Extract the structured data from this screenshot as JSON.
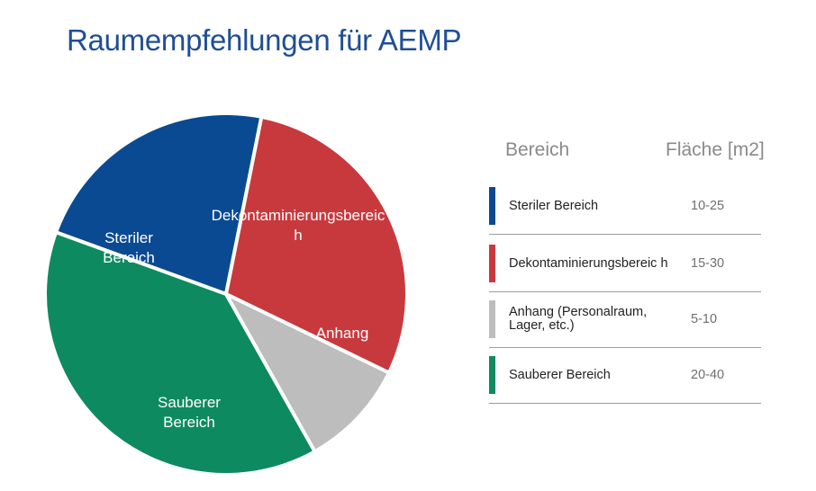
{
  "title": "Raumempfehlungen für AEMP",
  "table": {
    "header_area": "Bereich",
    "header_size": "Fläche [m2]",
    "rows": [
      {
        "name": "Steriler Bereich",
        "value": "10-25",
        "color": "#0a4a92"
      },
      {
        "name": "Dekontaminierungsbereic h",
        "value": "15-30",
        "color": "#c8393d"
      },
      {
        "name": "Anhang (Personalraum, Lager, etc.)",
        "value": "5-10",
        "color": "#bdbdbd"
      },
      {
        "name": "Sauberer Bereich",
        "value": "20-40",
        "color": "#0e8a60"
      }
    ]
  },
  "chart_data": {
    "type": "pie",
    "title": "",
    "slices": [
      {
        "label": "Steriler Bereich",
        "value": 17.5,
        "color": "#0a4a92"
      },
      {
        "label": "Dekontaminierungsbereic h",
        "value": 22.5,
        "color": "#c8393d"
      },
      {
        "label": "Anhang",
        "value": 7.5,
        "color": "#bdbdbd"
      },
      {
        "label": "Sauberer Bereich",
        "value": 30,
        "color": "#0e8a60"
      }
    ],
    "legend": "table-right"
  }
}
